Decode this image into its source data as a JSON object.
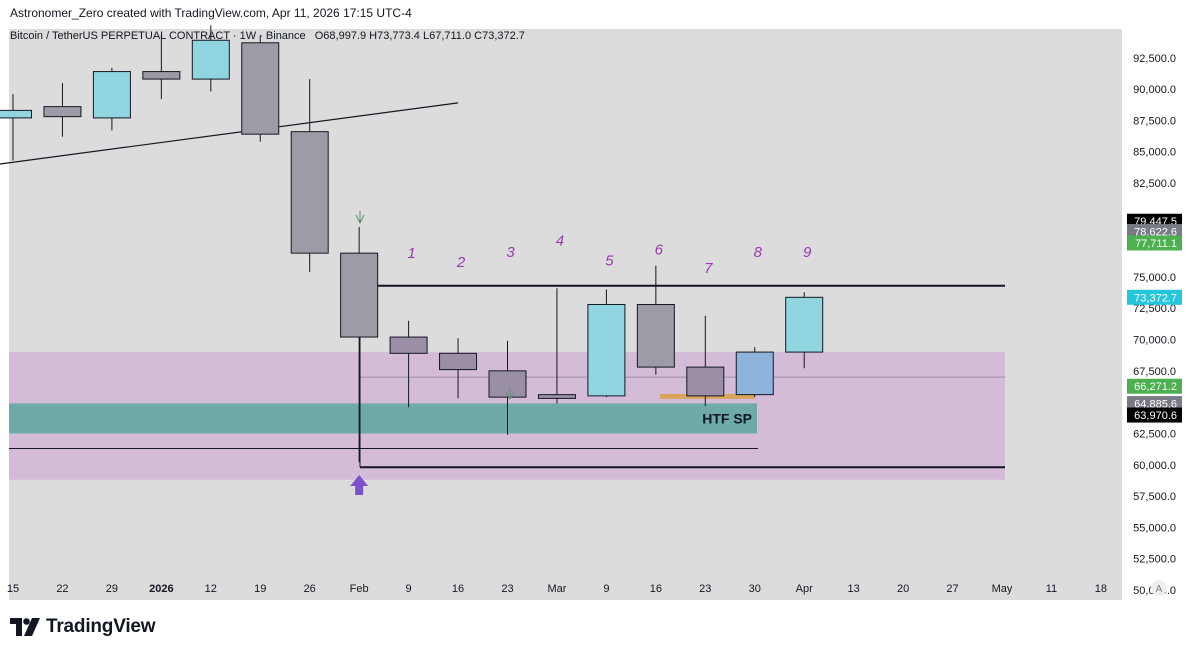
{
  "header": {
    "credit": "Astronomer_Zero created with TradingView.com, Apr 11, 2026 17:15 UTC-4"
  },
  "brand": {
    "name": "TradingView"
  },
  "chart_data": {
    "type": "candlestick",
    "symbol_line": "Bitcoin / TetherUS PERPETUAL CONTRACT · 1W · Binance",
    "ohlc_line": "O68,997.9  H73,773.4  L67,711.0  C73,372.7",
    "ylim": [
      49200,
      94800
    ],
    "y_ticks": [
      {
        "value": 92500,
        "label": "92,500.0"
      },
      {
        "value": 90000,
        "label": "90,000.0"
      },
      {
        "value": 87500,
        "label": "87,500.0"
      },
      {
        "value": 85000,
        "label": "85,000.0"
      },
      {
        "value": 82500,
        "label": "82,500.0"
      },
      {
        "value": 75000,
        "label": "75,000.0"
      },
      {
        "value": 72500,
        "label": "72,500.0"
      },
      {
        "value": 70000,
        "label": "70,000.0"
      },
      {
        "value": 67500,
        "label": "67,500.0"
      },
      {
        "value": 62500,
        "label": "62,500.0"
      },
      {
        "value": 60000,
        "label": "60,000.0"
      },
      {
        "value": 57500,
        "label": "57,500.0"
      },
      {
        "value": 55000,
        "label": "55,000.0"
      },
      {
        "value": 52500,
        "label": "52,500.0"
      },
      {
        "value": 50000,
        "label": "50,000.0"
      }
    ],
    "price_labels": [
      {
        "value": 79447.5,
        "label": "79,447.5",
        "color": "#000000"
      },
      {
        "value": 78622.6,
        "label": "78,622.6",
        "color": "#787b86"
      },
      {
        "value": 77711.1,
        "label": "77,711.1",
        "color": "#4caf50"
      },
      {
        "value": 73372.7,
        "label": "73,372.7",
        "color": "#26c6da"
      },
      {
        "value": 66271.2,
        "label": "66,271.2",
        "color": "#4caf50"
      },
      {
        "value": 64885.6,
        "label": "64,885.6",
        "color": "#787b86"
      },
      {
        "value": 63970.6,
        "label": "63,970.6",
        "color": "#000000"
      }
    ],
    "x_ticks": [
      {
        "i": 0,
        "label": "15",
        "bold": false
      },
      {
        "i": 1,
        "label": "22",
        "bold": false
      },
      {
        "i": 2,
        "label": "29",
        "bold": false
      },
      {
        "i": 3,
        "label": "2026",
        "bold": true
      },
      {
        "i": 4,
        "label": "12",
        "bold": false
      },
      {
        "i": 5,
        "label": "19",
        "bold": false
      },
      {
        "i": 6,
        "label": "26",
        "bold": false
      },
      {
        "i": 7,
        "label": "Feb",
        "bold": false
      },
      {
        "i": 8,
        "label": "9",
        "bold": false
      },
      {
        "i": 9,
        "label": "16",
        "bold": false
      },
      {
        "i": 10,
        "label": "23",
        "bold": false
      },
      {
        "i": 11,
        "label": "Mar",
        "bold": false
      },
      {
        "i": 12,
        "label": "9",
        "bold": false
      },
      {
        "i": 13,
        "label": "16",
        "bold": false
      },
      {
        "i": 14,
        "label": "23",
        "bold": false
      },
      {
        "i": 15,
        "label": "30",
        "bold": false
      },
      {
        "i": 16,
        "label": "Apr",
        "bold": false
      },
      {
        "i": 17,
        "label": "13",
        "bold": false
      },
      {
        "i": 18,
        "label": "20",
        "bold": false
      },
      {
        "i": 19,
        "label": "27",
        "bold": false
      },
      {
        "i": 20,
        "label": "May",
        "bold": false
      },
      {
        "i": 21,
        "label": "11",
        "bold": false
      },
      {
        "i": 22,
        "label": "18",
        "bold": false
      }
    ],
    "scale_mode_label": "A",
    "candles": [
      {
        "i": 0,
        "o": 87700,
        "h": 89600,
        "l": 84300,
        "c": 88300,
        "color": "#90d5e0"
      },
      {
        "i": 1,
        "o": 87800,
        "h": 90500,
        "l": 86200,
        "c": 88600,
        "color": "#9e9ba6"
      },
      {
        "i": 2,
        "o": 87700,
        "h": 91700,
        "l": 86700,
        "c": 91400,
        "color": "#90d5e0"
      },
      {
        "i": 3,
        "o": 91400,
        "h": 94300,
        "l": 89200,
        "c": 90800,
        "color": "#9e9ba6"
      },
      {
        "i": 4,
        "o": 90800,
        "h": 95100,
        "l": 89800,
        "c": 93900,
        "color": "#90d5e0"
      },
      {
        "i": 5,
        "o": 93700,
        "h": 94300,
        "l": 85800,
        "c": 86400,
        "color": "#9e9ba6"
      },
      {
        "i": 6,
        "o": 86600,
        "h": 90800,
        "l": 75400,
        "c": 76900,
        "color": "#9e9ba6"
      },
      {
        "i": 7,
        "o": 76900,
        "h": 79000,
        "l": 60200,
        "c": 70200,
        "color": "#9e9ba6"
      },
      {
        "i": 8,
        "o": 70200,
        "h": 71500,
        "l": 64600,
        "c": 68900,
        "color": "#9a8fa6"
      },
      {
        "i": 9,
        "o": 68900,
        "h": 70100,
        "l": 65300,
        "c": 67600,
        "color": "#9a8fa6"
      },
      {
        "i": 10,
        "o": 67500,
        "h": 69900,
        "l": 62400,
        "c": 65400,
        "color": "#9a8fa6"
      },
      {
        "i": 11,
        "o": 65600,
        "h": 74100,
        "l": 64900,
        "c": 65300,
        "color": "#9a8fa6"
      },
      {
        "i": 12,
        "o": 65500,
        "h": 74000,
        "l": 65400,
        "c": 72800,
        "color": "#90d5e0"
      },
      {
        "i": 13,
        "o": 72800,
        "h": 75900,
        "l": 67200,
        "c": 67800,
        "color": "#9e9ba6"
      },
      {
        "i": 14,
        "o": 67800,
        "h": 71900,
        "l": 64700,
        "c": 65500,
        "color": "#9a8fa6"
      },
      {
        "i": 15,
        "o": 65600,
        "h": 69400,
        "l": 65400,
        "c": 69000,
        "color": "#8fb4dc"
      },
      {
        "i": 16,
        "o": 68998,
        "h": 73773,
        "l": 67711,
        "c": 73373,
        "color": "#90d5e0"
      }
    ],
    "wave_labels": [
      {
        "i": 8,
        "label": "1",
        "value": 76500
      },
      {
        "i": 9,
        "label": "2",
        "value": 75800
      },
      {
        "i": 10,
        "label": "3",
        "value": 76600
      },
      {
        "i": 11,
        "label": "4",
        "value": 77500
      },
      {
        "i": 12,
        "label": "5",
        "value": 75900
      },
      {
        "i": 13,
        "label": "6",
        "value": 76800
      },
      {
        "i": 14,
        "label": "7",
        "value": 75300
      },
      {
        "i": 15,
        "label": "8",
        "value": 76600
      },
      {
        "i": 16,
        "label": "9",
        "value": 76600
      }
    ],
    "zones": [
      {
        "name": "purple-range",
        "from": 58800,
        "to": 69000,
        "color": "#d4bcd9"
      },
      {
        "name": "htf-sp",
        "label": "HTF SP",
        "from": 62500,
        "to": 64900,
        "color": "#6daaa8"
      }
    ],
    "levels": [
      74300,
      61300,
      59800,
      67000
    ],
    "trendline": {
      "from": {
        "i": -0.3,
        "value": 84000
      },
      "to": {
        "i": 9,
        "value": 88900
      }
    },
    "orange_bar_value": 65500,
    "time_arrow_value": 58300
  }
}
